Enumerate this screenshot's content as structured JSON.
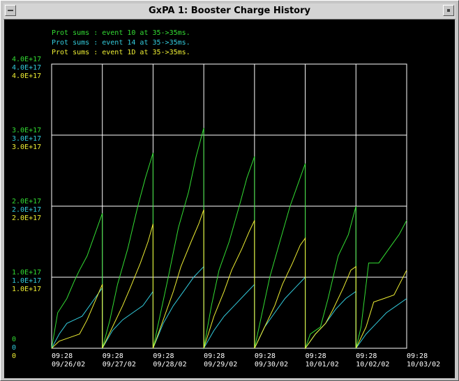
{
  "window": {
    "title": "GxPA 1: Booster Charge History"
  },
  "colors": {
    "series1": "#33dd33",
    "series2": "#33ccdd",
    "series3": "#eeee33",
    "grid": "#ffffff",
    "background": "#000000",
    "text": "#ffffff"
  },
  "chart_data": {
    "type": "line",
    "title": "",
    "legend": [
      "Prot sums : event 10 at 35->35ms.",
      "Prot sums : event 14 at 35->35ms.",
      "Prot sums : event 1D at 35->35ms."
    ],
    "x_ticks": [
      {
        "time": "09:28",
        "date": "09/26/02"
      },
      {
        "time": "09:28",
        "date": "09/27/02"
      },
      {
        "time": "09:28",
        "date": "09/28/02"
      },
      {
        "time": "09:28",
        "date": "09/29/02"
      },
      {
        "time": "09:28",
        "date": "09/30/02"
      },
      {
        "time": "09:28",
        "date": "10/01/02"
      },
      {
        "time": "09:28",
        "date": "10/02/02"
      },
      {
        "time": "09:28",
        "date": "10/03/02"
      }
    ],
    "y_ticks": [
      {
        "value": 0,
        "labels": [
          "0",
          "0",
          "0"
        ]
      },
      {
        "value": 1e+17,
        "labels": [
          "1.0E+17",
          "1.0E+17",
          "1.0E+17"
        ]
      },
      {
        "value": 2e+17,
        "labels": [
          "2.0E+17",
          "2.0E+17",
          "2.0E+17"
        ]
      },
      {
        "value": 3e+17,
        "labels": [
          "3.0E+17",
          "3.0E+17",
          "3.0E+17"
        ]
      },
      {
        "value": 4e+17,
        "labels": [
          "4.0E+17",
          "4.0E+17",
          "4.0E+17"
        ]
      }
    ],
    "xlim": [
      0,
      7
    ],
    "ylim": [
      0,
      4e+17
    ],
    "series": [
      {
        "name": "Prot sums : event 10 at 35->35ms.",
        "x": [
          0,
          0.12,
          0.3,
          0.45,
          0.55,
          0.7,
          0.85,
          1.0,
          1.0,
          1.0,
          1.15,
          1.3,
          1.5,
          1.7,
          1.85,
          2.0,
          2.0,
          2.0,
          2.15,
          2.3,
          2.5,
          2.7,
          2.85,
          3.0,
          3.0,
          3.0,
          3.15,
          3.3,
          3.5,
          3.7,
          3.85,
          4.0,
          4.0,
          4.0,
          4.15,
          4.3,
          4.5,
          4.7,
          4.85,
          5.0,
          5.0,
          5.0,
          5.1,
          5.3,
          5.45,
          5.65,
          5.85,
          6.0,
          6.0,
          6.0,
          6.1,
          6.25,
          6.45,
          6.65,
          6.85,
          7.0
        ],
        "y": [
          0,
          5e+16,
          7e+16,
          9.5e+16,
          1.1e+17,
          1.3e+17,
          1.6e+17,
          1.9e+17,
          0,
          0,
          4e+16,
          9e+16,
          1.4e+17,
          2e+17,
          2.4e+17,
          2.75e+17,
          0,
          0,
          5e+16,
          1e+17,
          1.7e+17,
          2.2e+17,
          2.7e+17,
          3.1e+17,
          0,
          0,
          6e+16,
          1.1e+17,
          1.5e+17,
          2e+17,
          2.4e+17,
          2.7e+17,
          0,
          0,
          5e+16,
          1e+17,
          1.5e+17,
          2e+17,
          2.3e+17,
          2.6e+17,
          0,
          0,
          2e+16,
          3e+16,
          7e+16,
          1.3e+17,
          1.6e+17,
          2e+17,
          0,
          0,
          3e+16,
          1.2e+17,
          1.2e+17,
          1.4e+17,
          1.6e+17,
          1.8e+17
        ]
      },
      {
        "name": "Prot sums : event 14 at 35->35ms.",
        "x": [
          0,
          0.15,
          0.3,
          0.45,
          0.6,
          0.75,
          0.9,
          1.0,
          1.0,
          1.0,
          1.2,
          1.4,
          1.6,
          1.8,
          2.0,
          2.0,
          2.0,
          2.2,
          2.4,
          2.6,
          2.8,
          3.0,
          3.0,
          3.0,
          3.2,
          3.4,
          3.6,
          3.8,
          4.0,
          4.0,
          4.0,
          4.2,
          4.4,
          4.6,
          4.8,
          5.0,
          5.0,
          5.0,
          5.2,
          5.4,
          5.6,
          5.8,
          6.0,
          6.0,
          6.0,
          6.2,
          6.4,
          6.6,
          6.8,
          7.0
        ],
        "y": [
          0,
          2e+16,
          3.5e+16,
          4e+16,
          4.5e+16,
          6e+16,
          7.5e+16,
          8.5e+16,
          0,
          0,
          2.5e+16,
          4e+16,
          5e+16,
          6e+16,
          8e+16,
          0,
          0,
          3.5e+16,
          6e+16,
          8e+16,
          1e+17,
          1.15e+17,
          0,
          0,
          2.5e+16,
          4.5e+16,
          6e+16,
          7.5e+16,
          9e+16,
          0,
          0,
          3e+16,
          5e+16,
          7e+16,
          8.5e+16,
          1e+17,
          0,
          0,
          2e+16,
          3.5e+16,
          5.5e+16,
          7e+16,
          8e+16,
          0,
          0,
          2e+16,
          3.5e+16,
          5e+16,
          6e+16,
          7e+16
        ]
      },
      {
        "name": "Prot sums : event 1D at 35->35ms.",
        "x": [
          0,
          0.15,
          0.35,
          0.55,
          0.7,
          0.85,
          1.0,
          1.0,
          1.0,
          1.2,
          1.4,
          1.55,
          1.75,
          1.9,
          2.0,
          2.0,
          2.0,
          2.2,
          2.4,
          2.55,
          2.75,
          2.9,
          3.0,
          3.0,
          3.0,
          3.2,
          3.4,
          3.55,
          3.75,
          3.9,
          4.0,
          4.0,
          4.0,
          4.2,
          4.4,
          4.55,
          4.75,
          4.9,
          5.0,
          5.0,
          5.0,
          5.2,
          5.4,
          5.55,
          5.75,
          5.9,
          6.0,
          6.0,
          6.0,
          6.2,
          6.35,
          6.55,
          6.75,
          7.0
        ],
        "y": [
          0,
          1e+16,
          1.5e+16,
          2e+16,
          4e+16,
          6.5e+16,
          9e+16,
          0,
          0,
          3e+16,
          6e+16,
          8.5e+16,
          1.2e+17,
          1.5e+17,
          1.75e+17,
          0,
          0,
          4e+16,
          8e+16,
          1.15e+17,
          1.5e+17,
          1.75e+17,
          1.95e+17,
          0,
          0,
          4.5e+16,
          8e+16,
          1.1e+17,
          1.4e+17,
          1.65e+17,
          1.8e+17,
          0,
          0,
          3e+16,
          6e+16,
          9e+16,
          1.2e+17,
          1.45e+17,
          1.55e+17,
          0,
          0,
          2e+16,
          3.5e+16,
          5.5e+16,
          8.5e+16,
          1.1e+17,
          1.15e+17,
          0,
          0,
          3e+16,
          6.5e+16,
          7e+16,
          7.5e+16,
          1.1e+17
        ]
      }
    ]
  }
}
